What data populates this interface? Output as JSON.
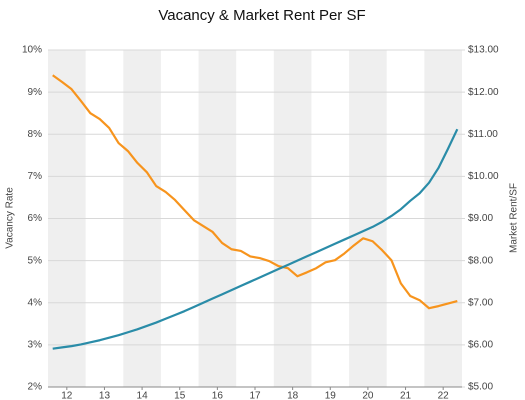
{
  "chart_data": {
    "type": "line",
    "title": "Vacancy & Market Rent Per SF",
    "y_label": "Vacancy Rate",
    "y2_label": "Market Rent/SF",
    "x": [
      11.625,
      11.875,
      12.125,
      12.375,
      12.625,
      12.875,
      13.125,
      13.375,
      13.625,
      13.875,
      14.125,
      14.375,
      14.625,
      14.875,
      15.125,
      15.375,
      15.625,
      15.875,
      16.125,
      16.375,
      16.625,
      16.875,
      17.125,
      17.375,
      17.625,
      17.875,
      18.125,
      18.375,
      18.625,
      18.875,
      19.125,
      19.375,
      19.625,
      19.875,
      20.125,
      20.375,
      20.625,
      20.875,
      21.125,
      21.375,
      21.625,
      21.875,
      22.125,
      22.375
    ],
    "xlim": [
      11.5,
      22.5
    ],
    "xticks": [
      12,
      13,
      14,
      15,
      16,
      17,
      18,
      19,
      20,
      21,
      22
    ],
    "alternate_bands": true,
    "grid": true,
    "series": [
      {
        "name": "Vacancy Rate",
        "color": "#f7941d",
        "axis": "y",
        "values": [
          9.4,
          9.24,
          9.07,
          8.79,
          8.5,
          8.36,
          8.15,
          7.79,
          7.6,
          7.32,
          7.1,
          6.77,
          6.63,
          6.44,
          6.2,
          5.96,
          5.82,
          5.68,
          5.42,
          5.27,
          5.23,
          5.1,
          5.06,
          4.99,
          4.87,
          4.82,
          4.63,
          4.72,
          4.82,
          4.96,
          5.01,
          5.17,
          5.36,
          5.53,
          5.46,
          5.25,
          5.01,
          4.46,
          4.16,
          4.06,
          3.87,
          3.92,
          3.98,
          4.04
        ]
      },
      {
        "name": "Market Rent/SF",
        "color": "#2a8ca8",
        "axis": "y2",
        "values": [
          5.91,
          5.94,
          5.97,
          6.01,
          6.06,
          6.11,
          6.17,
          6.23,
          6.3,
          6.37,
          6.45,
          6.53,
          6.62,
          6.71,
          6.8,
          6.9,
          7.0,
          7.1,
          7.2,
          7.3,
          7.4,
          7.5,
          7.6,
          7.7,
          7.8,
          7.9,
          8.0,
          8.1,
          8.2,
          8.3,
          8.4,
          8.5,
          8.6,
          8.7,
          8.8,
          8.92,
          9.06,
          9.22,
          9.42,
          9.6,
          9.85,
          10.2,
          10.65,
          11.12
        ]
      }
    ],
    "ylim": [
      2,
      10
    ],
    "yticks": [
      {
        "value": 2,
        "label": "2%"
      },
      {
        "value": 3,
        "label": "3%"
      },
      {
        "value": 4,
        "label": "4%"
      },
      {
        "value": 5,
        "label": "5%"
      },
      {
        "value": 6,
        "label": "6%"
      },
      {
        "value": 7,
        "label": "7%"
      },
      {
        "value": 8,
        "label": "8%"
      },
      {
        "value": 9,
        "label": "9%"
      },
      {
        "value": 10,
        "label": "10%"
      }
    ],
    "y2lim": [
      5,
      13
    ],
    "y2ticks": [
      {
        "value": 5,
        "label": "$5.00"
      },
      {
        "value": 6,
        "label": "$6.00"
      },
      {
        "value": 7,
        "label": "$7.00"
      },
      {
        "value": 8,
        "label": "$8.00"
      },
      {
        "value": 9,
        "label": "$9.00"
      },
      {
        "value": 10,
        "label": "$10.00"
      },
      {
        "value": 11,
        "label": "$11.00"
      },
      {
        "value": 12,
        "label": "$12.00"
      },
      {
        "value": 13,
        "label": "$13.00"
      }
    ]
  }
}
